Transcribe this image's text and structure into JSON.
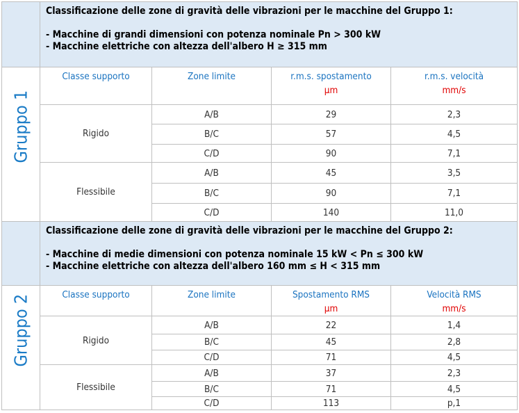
{
  "groups": [
    {
      "label": "Gruppo 1",
      "title": "Classificazione delle zone di gravità delle vibrazioni per le macchine del Gruppo 1:",
      "lines": [
        "- Macchine di grandi dimensioni con potenza nominale Pn > 300 kW",
        "- Macchine elettriche con altezza dell'albero H ≥ 315 mm"
      ],
      "headers": {
        "support": "Classe supporto",
        "zone": "Zone limite",
        "disp": "r.m.s. spostamento",
        "disp_unit": "µm",
        "vel": "r.m.s. velocità",
        "vel_unit": "mm/s"
      },
      "rigid": "Rigido",
      "flex": "Flessibile",
      "rows": [
        [
          "A/B",
          "29",
          "2,3"
        ],
        [
          "B/C",
          "57",
          "4,5"
        ],
        [
          "C/D",
          "90",
          "7,1"
        ],
        [
          "A/B",
          "45",
          "3,5"
        ],
        [
          "B/C",
          "90",
          "7,1"
        ],
        [
          "C/D",
          "140",
          "11,0"
        ]
      ]
    },
    {
      "label": "Gruppo 2",
      "title": "Classificazione delle zone di gravità delle vibrazioni per le macchine del Gruppo 2:",
      "lines": [
        "- Macchine di medie dimensioni con potenza nominale 15 kW < Pn ≤ 300 kW",
        "- Macchine elettriche con altezza dell'albero 160 mm ≤ H < 315 mm"
      ],
      "headers": {
        "support": "Classe supporto",
        "zone": "Zone limite",
        "disp": "Spostamento RMS",
        "disp_unit": "µm",
        "vel": "Velocità RMS",
        "vel_unit": "mm/s"
      },
      "rigid": "Rigido",
      "flex": "Flessibile",
      "rows": [
        [
          "A/B",
          "22",
          "1,4"
        ],
        [
          "B/C",
          "45",
          "2,8"
        ],
        [
          "C/D",
          "71",
          "4,5"
        ],
        [
          "A/B",
          "37",
          "2,3"
        ],
        [
          "B/C",
          "71",
          "4,5"
        ],
        [
          "C/D",
          "113",
          "p,1"
        ]
      ]
    }
  ]
}
